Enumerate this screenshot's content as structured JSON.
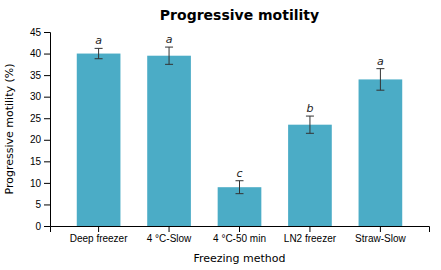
{
  "chart_data": {
    "type": "bar",
    "title": "Progressive motility",
    "xlabel": "Freezing method",
    "ylabel": "Progressive motility (%)",
    "categories": [
      "Deep freezer",
      "4 °C-Slow",
      "4 °C-50 min",
      "LN2 freezer",
      "Straw-Slow"
    ],
    "values": [
      40.0,
      39.5,
      9.0,
      23.5,
      34.0
    ],
    "errors": [
      1.2,
      2.0,
      1.5,
      2.0,
      2.5
    ],
    "letters": [
      "a",
      "a",
      "c",
      "b",
      "a"
    ],
    "color": "#4BACC6",
    "ylim": [
      0,
      45
    ],
    "yticks": [
      0,
      5,
      10,
      15,
      20,
      25,
      30,
      35,
      40,
      45
    ],
    "grid": false
  }
}
